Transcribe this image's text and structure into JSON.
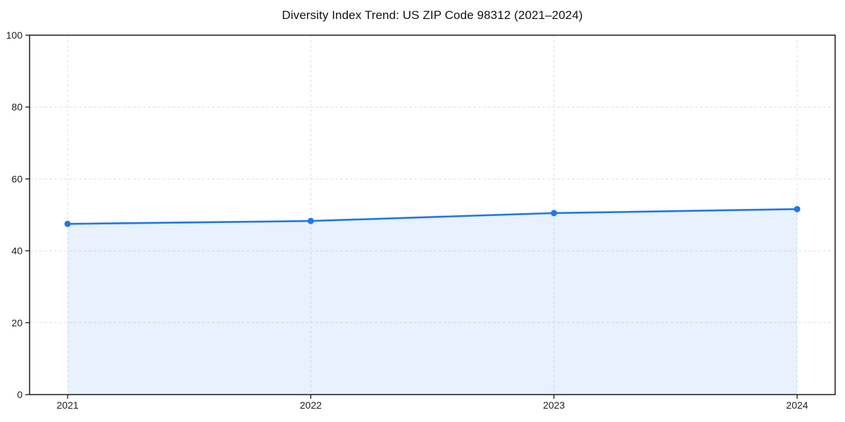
{
  "page": {
    "background": "#ffffff"
  },
  "chart_data": {
    "type": "line",
    "title": "Diversity Index Trend: US ZIP Code 98312 (2021–2024)",
    "categories": [
      "2021",
      "2022",
      "2023",
      "2024"
    ],
    "series": [
      {
        "name": "Diversity Index",
        "values": [
          47.5,
          48.3,
          50.5,
          51.6
        ]
      }
    ],
    "xlabel": "",
    "ylabel": "",
    "ylim": [
      0,
      100
    ],
    "yticks": [
      0,
      20,
      40,
      60,
      80,
      100
    ],
    "grid": true,
    "grid_style": "dashed",
    "legend": "none",
    "area_fill": true,
    "markers": true,
    "colors": {
      "line": "#2176ea",
      "marker": "#2176ea",
      "area_fill_rgba": "rgba(33, 118, 234, 0.10)",
      "grid": "#e0e0e0",
      "spine": "#0a0a0a",
      "text": "#1c1c1c",
      "background": "#ffffff"
    }
  }
}
